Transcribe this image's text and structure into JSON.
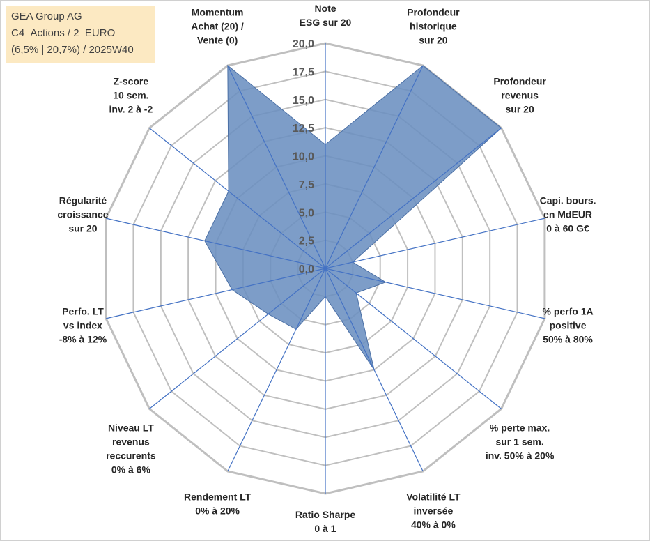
{
  "info": {
    "company": "GEA Group AG",
    "category": "C4_Actions / 2_EURO",
    "period": "(6,5% | 20,7%) / 2025W40"
  },
  "chart_data": {
    "type": "radar",
    "title": "",
    "rmax": 20,
    "rlim": [
      0,
      20
    ],
    "ticks": [
      0,
      2.5,
      5,
      7.5,
      10,
      12.5,
      15,
      17.5,
      20
    ],
    "tick_labels": [
      "0,0",
      "2,5",
      "5,0",
      "7,5",
      "10,0",
      "12,5",
      "15,0",
      "17,5",
      "20,0"
    ],
    "axes": [
      {
        "label": [
          "Note",
          "ESG sur 20"
        ],
        "value": 11
      },
      {
        "label": [
          "Profondeur",
          "historique",
          "sur 20"
        ],
        "value": 20
      },
      {
        "label": [
          "Profondeur",
          "revenus",
          "sur 20"
        ],
        "value": 20
      },
      {
        "label": [
          "Capi. bours.",
          "en MdEUR",
          "0 à 60 G€"
        ],
        "value": 2.5
      },
      {
        "label": [
          "% perfo 1A",
          "positive",
          "50% à 80%"
        ],
        "value": 5.5
      },
      {
        "label": [
          "% perte max.",
          "sur 1 sem.",
          "inv. 50% à 20%"
        ],
        "value": 3.5
      },
      {
        "label": [
          "Volatilité LT",
          "inversée",
          "40% à 0%"
        ],
        "value": 10
      },
      {
        "label": [
          "Ratio Sharpe",
          "0 à 1"
        ],
        "value": 2.5
      },
      {
        "label": [
          "Rendement LT",
          "0% à 20%"
        ],
        "value": 6
      },
      {
        "label": [
          "Niveau LT",
          "revenus",
          "reccurents",
          "0% à 6%"
        ],
        "value": 6.5
      },
      {
        "label": [
          "Perfo. LT",
          "vs index",
          "-8% à 12%"
        ],
        "value": 8.5
      },
      {
        "label": [
          "Régularité",
          "croissance",
          "sur 20"
        ],
        "value": 11
      },
      {
        "label": [
          "Z-score",
          "10 sem.",
          "inv. 2 à -2"
        ],
        "value": 11
      },
      {
        "label": [
          "Momentum",
          "Achat (20) /",
          "Vente (0)"
        ],
        "value": 20
      }
    ],
    "series": [
      {
        "name": "GEA Group AG",
        "fill_color": "#6b8fc0",
        "stroke_color": "#4a6fa5"
      }
    ],
    "colors": {
      "grid": "#bfbfbf",
      "spokes": "#4472c4"
    },
    "grid": true,
    "legend": "none"
  }
}
